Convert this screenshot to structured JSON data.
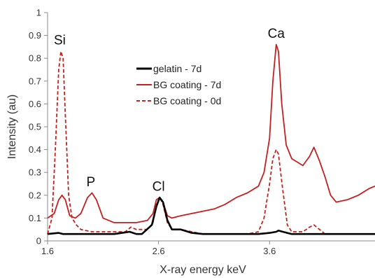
{
  "chart_data": {
    "type": "line",
    "xlabel": "X-ray energy keV",
    "ylabel": "Intensity (au)",
    "xlim": [
      1.6,
      4.55
    ],
    "ylim": [
      0,
      1
    ],
    "xticks": [
      1.6,
      2.6,
      3.6
    ],
    "xtick_labels": [
      "1.6",
      "2.6",
      "3.6"
    ],
    "yticks": [
      0,
      0.1,
      0.2,
      0.3,
      0.4,
      0.5,
      0.6,
      0.7,
      0.8,
      0.9,
      1
    ],
    "ytick_labels": [
      "0",
      "0.1",
      "0.2",
      "0.3",
      "0.4",
      "0.5",
      "0.6",
      "0.7",
      "0.8",
      "0.9",
      "1"
    ],
    "grid": false,
    "legend_position": "center",
    "series": [
      {
        "name": "gelatin - 7d",
        "color": "#000000",
        "style": "solid",
        "x": [
          1.6,
          1.7,
          1.74,
          1.8,
          2.0,
          2.2,
          2.34,
          2.4,
          2.45,
          2.54,
          2.58,
          2.61,
          2.64,
          2.68,
          2.72,
          2.8,
          2.9,
          3.0,
          3.2,
          3.4,
          3.5,
          3.6,
          3.66,
          3.68,
          3.72,
          3.8,
          4.0,
          4.2,
          4.55
        ],
        "y": [
          0.03,
          0.035,
          0.03,
          0.03,
          0.03,
          0.03,
          0.04,
          0.03,
          0.03,
          0.07,
          0.15,
          0.19,
          0.17,
          0.09,
          0.05,
          0.05,
          0.035,
          0.03,
          0.03,
          0.03,
          0.03,
          0.035,
          0.04,
          0.045,
          0.04,
          0.03,
          0.03,
          0.03,
          0.03
        ]
      },
      {
        "name": "BG coating - 7d",
        "color": "#c42020",
        "style": "solid",
        "x": [
          1.6,
          1.66,
          1.7,
          1.73,
          1.76,
          1.8,
          1.85,
          1.9,
          1.96,
          2.0,
          2.04,
          2.1,
          2.2,
          2.3,
          2.4,
          2.5,
          2.55,
          2.58,
          2.61,
          2.64,
          2.68,
          2.72,
          2.8,
          2.9,
          3.0,
          3.1,
          3.2,
          3.3,
          3.4,
          3.5,
          3.55,
          3.6,
          3.63,
          3.66,
          3.68,
          3.71,
          3.75,
          3.8,
          3.9,
          3.96,
          4.0,
          4.05,
          4.1,
          4.15,
          4.2,
          4.3,
          4.4,
          4.5,
          4.55
        ],
        "y": [
          0.1,
          0.12,
          0.18,
          0.2,
          0.18,
          0.11,
          0.1,
          0.12,
          0.19,
          0.21,
          0.18,
          0.1,
          0.08,
          0.08,
          0.08,
          0.09,
          0.12,
          0.18,
          0.19,
          0.17,
          0.11,
          0.1,
          0.11,
          0.12,
          0.13,
          0.14,
          0.16,
          0.19,
          0.21,
          0.24,
          0.3,
          0.45,
          0.7,
          0.86,
          0.83,
          0.6,
          0.42,
          0.36,
          0.33,
          0.37,
          0.41,
          0.35,
          0.28,
          0.2,
          0.17,
          0.18,
          0.2,
          0.23,
          0.24
        ]
      },
      {
        "name": "BG coating - 0d",
        "color": "#c42020",
        "style": "dashed",
        "x": [
          1.6,
          1.64,
          1.67,
          1.7,
          1.72,
          1.74,
          1.76,
          1.79,
          1.82,
          1.86,
          1.9,
          2.0,
          2.2,
          2.3,
          2.35,
          2.4,
          2.5,
          2.55,
          2.58,
          2.61,
          2.64,
          2.68,
          2.72,
          2.8,
          2.9,
          3.0,
          3.2,
          3.4,
          3.5,
          3.55,
          3.6,
          3.63,
          3.66,
          3.68,
          3.72,
          3.76,
          3.8,
          3.9,
          3.96,
          4.0,
          4.05,
          4.1,
          4.3,
          4.55
        ],
        "y": [
          0.03,
          0.1,
          0.4,
          0.75,
          0.83,
          0.8,
          0.55,
          0.2,
          0.1,
          0.07,
          0.05,
          0.04,
          0.04,
          0.04,
          0.06,
          0.05,
          0.05,
          0.08,
          0.16,
          0.19,
          0.16,
          0.08,
          0.05,
          0.05,
          0.04,
          0.03,
          0.03,
          0.03,
          0.04,
          0.1,
          0.25,
          0.36,
          0.4,
          0.38,
          0.22,
          0.07,
          0.04,
          0.04,
          0.06,
          0.07,
          0.05,
          0.03,
          0.03,
          0.03
        ]
      }
    ],
    "annotations": [
      {
        "text": "Si",
        "x": 1.71,
        "y": 0.86
      },
      {
        "text": "P",
        "x": 1.99,
        "y": 0.24
      },
      {
        "text": "Cl",
        "x": 2.6,
        "y": 0.22
      },
      {
        "text": "Ca",
        "x": 3.66,
        "y": 0.89
      }
    ]
  }
}
